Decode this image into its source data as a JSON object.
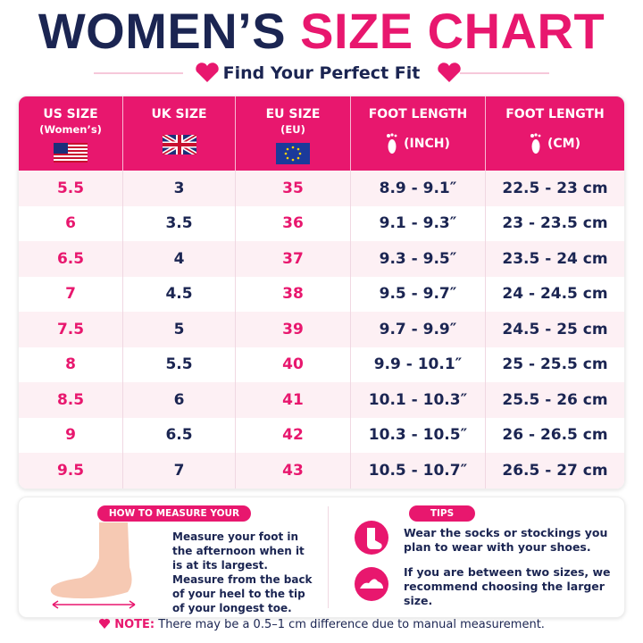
{
  "header": {
    "title_dark": "WOMEN’S",
    "title_pink": "SIZE CHART",
    "subtitle": "Find Your Perfect Fit"
  },
  "table": {
    "columns": [
      {
        "label": "US SIZE",
        "sublabel": "(Women’s)"
      },
      {
        "label": "UK SIZE"
      },
      {
        "label": "EU SIZE",
        "sublabel": "(EU)"
      },
      {
        "label": "FOOT LENGTH",
        "sublabel": "(INCH)"
      },
      {
        "label": "FOOT LENGTH",
        "sublabel": "(CM)"
      }
    ],
    "rows": [
      [
        "5.5",
        "3",
        "35",
        "8.9 - 9.1″",
        "22.5 - 23 cm"
      ],
      [
        "6",
        "3.5",
        "36",
        "9.1 - 9.3″",
        "23 - 23.5 cm"
      ],
      [
        "6.5",
        "4",
        "37",
        "9.3 - 9.5″",
        "23.5 - 24 cm"
      ],
      [
        "7",
        "4.5",
        "38",
        "9.5 - 9.7″",
        "24 - 24.5 cm"
      ],
      [
        "7.5",
        "5",
        "39",
        "9.7 - 9.9″",
        "24.5 - 25 cm"
      ],
      [
        "8",
        "5.5",
        "40",
        "9.9 - 10.1″",
        "25 - 25.5 cm"
      ],
      [
        "8.5",
        "6",
        "41",
        "10.1 - 10.3″",
        "25.5 - 26 cm"
      ],
      [
        "9",
        "6.5",
        "42",
        "10.3 - 10.5″",
        "26 - 26.5 cm"
      ],
      [
        "9.5",
        "7",
        "43",
        "10.5 - 10.7″",
        "26.5 - 27 cm"
      ]
    ]
  },
  "measure": {
    "title": "HOW TO MEASURE YOUR FOOT",
    "text": "Measure your foot in the afternoon when it is at its largest. Measure from the back of your heel to the tip of your longest toe."
  },
  "tips": {
    "title": "TIPS",
    "items": [
      "Wear the socks or stockings you plan to wear with your shoes.",
      "If you are between two sizes, we recommend choosing the larger size."
    ]
  },
  "note": {
    "label": "NOTE:",
    "text": "There may be a 0.5–1 cm difference due to manual measurement."
  }
}
